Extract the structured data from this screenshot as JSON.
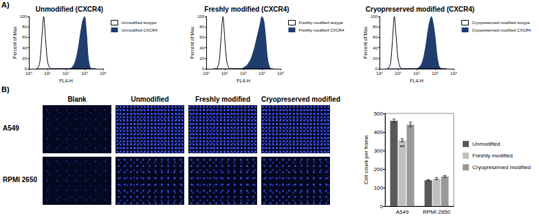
{
  "panel_labels": [
    "A)",
    "B)"
  ],
  "images": {
    "columns": [
      "Blank",
      "Unmodified",
      "Freshly modified",
      "Cryopreserved modified"
    ],
    "rows": [
      "A549",
      "RPMI 2650"
    ]
  },
  "chart_data": [
    {
      "type": "line",
      "title": "Unmodified (CXCR4)",
      "x_label": "FL4-H",
      "y_label": "Percent of Max",
      "x": [
        2.51,
        3.16,
        3.98,
        5.01,
        6.31,
        7.94,
        10,
        12.6,
        15.8,
        20,
        25.1,
        31.6,
        39.8,
        50.1,
        63.1,
        79.4,
        100,
        126,
        158,
        200,
        251,
        316,
        398,
        501,
        631,
        794,
        1000,
        1259,
        1585,
        1995,
        2512,
        3162,
        3981
      ],
      "series": [
        {
          "name": "Unmodified isotype",
          "color": "#000000",
          "type": "line",
          "values": [
            0,
            2,
            15,
            60,
            100,
            55,
            15,
            3,
            0,
            0,
            0,
            0,
            0,
            0,
            0,
            0,
            0,
            0,
            0,
            0,
            0,
            0,
            0,
            0,
            0,
            0,
            0,
            0,
            0,
            0,
            0,
            0,
            0
          ]
        },
        {
          "name": "Unmodified CXCR4",
          "color": "#1f3d6d",
          "type": "area",
          "values": [
            0,
            0,
            0,
            0,
            0,
            0,
            0,
            0,
            0,
            0,
            0,
            0,
            0,
            0,
            0,
            0,
            0,
            0,
            0,
            2,
            6,
            14,
            28,
            48,
            72,
            92,
            100,
            70,
            20,
            3,
            0,
            0,
            0
          ]
        }
      ],
      "log": "x",
      "xlim": [
        1,
        10000
      ],
      "xticks": [
        {
          "value": 1,
          "label": "10⁰"
        },
        {
          "value": 10,
          "label": "10¹"
        },
        {
          "value": 100,
          "label": "10²"
        },
        {
          "value": 1000,
          "label": "10³"
        },
        {
          "value": 10000,
          "label": "10⁴"
        }
      ],
      "ylim": [
        0,
        100
      ],
      "yticks": [
        0,
        20,
        40,
        60,
        80,
        100
      ],
      "grid": false,
      "legend": "right"
    },
    {
      "type": "line",
      "title": "Freshly modified (CXCR4)",
      "x_label": "FL4-H",
      "y_label": "Percent of Max",
      "x": [
        2.51,
        3.16,
        3.98,
        5.01,
        6.31,
        7.94,
        10,
        12.6,
        15.8,
        20,
        25.1,
        31.6,
        39.8,
        50.1,
        63.1,
        79.4,
        100,
        126,
        158,
        200,
        251,
        316,
        398,
        501,
        631,
        794,
        1000,
        1259,
        1585,
        1995,
        2512,
        3162,
        3981
      ],
      "series": [
        {
          "name": "Freshly modified isotype",
          "color": "#000000",
          "type": "line",
          "values": [
            0,
            0,
            2,
            15,
            60,
            100,
            55,
            15,
            3,
            0,
            0,
            0,
            0,
            0,
            0,
            0,
            0,
            0,
            0,
            0,
            0,
            0,
            0,
            0,
            0,
            0,
            0,
            0,
            0,
            0,
            0,
            0,
            0
          ]
        },
        {
          "name": "Freshly modified CXCR4",
          "color": "#1f3d6d",
          "type": "area",
          "values": [
            0,
            0,
            0,
            0,
            0,
            0,
            0,
            0,
            0,
            0,
            0,
            0,
            0,
            0,
            0,
            0,
            2,
            4,
            7,
            12,
            18,
            28,
            40,
            55,
            70,
            85,
            100,
            92,
            60,
            20,
            4,
            0,
            0
          ]
        }
      ],
      "log": "x",
      "xlim": [
        1,
        10000
      ],
      "xticks": [
        {
          "value": 1,
          "label": "10⁰"
        },
        {
          "value": 10,
          "label": "10¹"
        },
        {
          "value": 100,
          "label": "10²"
        },
        {
          "value": 1000,
          "label": "10³"
        },
        {
          "value": 10000,
          "label": "10⁴"
        }
      ],
      "ylim": [
        0,
        100
      ],
      "yticks": [
        0,
        20,
        40,
        60,
        80,
        100
      ],
      "grid": false,
      "legend": "right"
    },
    {
      "type": "line",
      "title": "Cryopreserved modified (CXCR4)",
      "x_label": "FL4-H",
      "y_label": "Percent of Max",
      "x": [
        2.51,
        3.16,
        3.98,
        5.01,
        6.31,
        7.94,
        10,
        12.6,
        15.8,
        20,
        25.1,
        31.6,
        39.8,
        50.1,
        63.1,
        79.4,
        100,
        126,
        158,
        200,
        251,
        316,
        398,
        501,
        631,
        794,
        1000,
        1259,
        1585,
        1995,
        2512,
        3162,
        3981
      ],
      "series": [
        {
          "name": "Cryopreserved modified isotype",
          "color": "#000000",
          "type": "line",
          "values": [
            0,
            2,
            12,
            55,
            100,
            60,
            18,
            4,
            0,
            0,
            0,
            0,
            0,
            0,
            0,
            0,
            0,
            0,
            0,
            0,
            0,
            0,
            0,
            0,
            0,
            0,
            0,
            0,
            0,
            0,
            0,
            0,
            0
          ]
        },
        {
          "name": "Cryopreserved modified CXCR4",
          "color": "#1f3d6d",
          "type": "area",
          "values": [
            0,
            0,
            0,
            0,
            0,
            0,
            0,
            0,
            0,
            0,
            0,
            0,
            0,
            0,
            0,
            0,
            0,
            2,
            5,
            12,
            25,
            45,
            70,
            90,
            100,
            85,
            60,
            25,
            6,
            1,
            0,
            0,
            0
          ]
        }
      ],
      "log": "x",
      "xlim": [
        1,
        10000
      ],
      "xticks": [
        {
          "value": 1,
          "label": "10⁰"
        },
        {
          "value": 10,
          "label": "10¹"
        },
        {
          "value": 100,
          "label": "10²"
        },
        {
          "value": 1000,
          "label": "10³"
        },
        {
          "value": 10000,
          "label": "10⁴"
        }
      ],
      "ylim": [
        0,
        100
      ],
      "yticks": [
        0,
        20,
        40,
        60,
        80,
        100
      ],
      "grid": false,
      "legend": "right"
    },
    {
      "type": "bar",
      "y_label": "Cell count per frame",
      "categories": [
        "A549",
        "RPMI 2650"
      ],
      "series": [
        {
          "name": "Unmodified",
          "color": "#595959",
          "values": [
            460,
            140
          ],
          "errors": [
            10,
            3
          ]
        },
        {
          "name": "Freshly modified",
          "color": "#c0c0c0",
          "values": [
            355,
            148
          ],
          "errors": [
            8,
            6
          ]
        },
        {
          "name": "Cryopreserved modified",
          "color": "#999999",
          "values": [
            440,
            160
          ],
          "errors": [
            12,
            5
          ]
        }
      ],
      "annotations": [
        {
          "text": "**",
          "category": "A549",
          "series": "Freshly modified"
        }
      ],
      "ylim": [
        0,
        500
      ],
      "yticks": [
        0,
        100,
        200,
        300,
        400,
        500
      ],
      "grid": false,
      "legend": "right"
    }
  ]
}
